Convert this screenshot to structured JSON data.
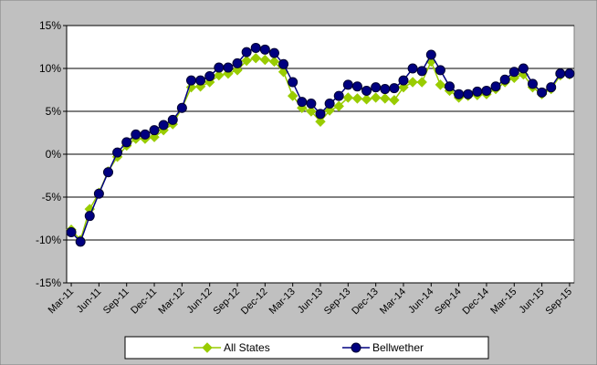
{
  "chart_data": {
    "type": "line",
    "categories": [
      "Mar-11",
      null,
      null,
      "Jun-11",
      null,
      null,
      "Sep-11",
      null,
      null,
      "Dec-11",
      null,
      null,
      "Mar-12",
      null,
      null,
      "Jun-12",
      null,
      null,
      "Sep-12",
      null,
      null,
      "Dec-12",
      null,
      null,
      "Mar-13",
      null,
      null,
      "Jun-13",
      null,
      null,
      "Sep-13",
      null,
      null,
      "Dec-13",
      null,
      null,
      "Mar-14",
      null,
      null,
      "Jun-14",
      null,
      null,
      "Sep-14",
      null,
      null,
      "Dec-14",
      null,
      null,
      "Mar-15",
      null,
      null,
      "Jun-15",
      null,
      null,
      "Sep-15"
    ],
    "series": [
      {
        "name": "All States",
        "color": "#99cc00",
        "marker": "diamond",
        "values": [
          -8.8,
          -10.0,
          -6.4,
          -4.5,
          -2.0,
          -0.3,
          1.0,
          1.8,
          1.8,
          2.0,
          2.8,
          3.5,
          5.4,
          7.8,
          7.9,
          8.4,
          9.2,
          9.4,
          9.8,
          10.9,
          11.2,
          11.0,
          10.8,
          9.6,
          6.8,
          5.4,
          5.0,
          3.8,
          5.1,
          5.6,
          6.6,
          6.5,
          6.4,
          6.6,
          6.5,
          6.3,
          7.8,
          8.4,
          8.4,
          10.8,
          8.1,
          7.4,
          6.6,
          6.8,
          6.9,
          7.0,
          7.6,
          8.4,
          8.9,
          9.3,
          7.8,
          7.0,
          7.6,
          9.2,
          9.3
        ]
      },
      {
        "name": "Bellwether",
        "color": "#000080",
        "marker": "circle",
        "values": [
          -9.1,
          -10.2,
          -7.2,
          -4.6,
          -2.1,
          0.2,
          1.4,
          2.3,
          2.3,
          2.8,
          3.4,
          4.0,
          5.4,
          8.6,
          8.6,
          9.1,
          10.1,
          10.1,
          10.6,
          11.9,
          12.4,
          12.2,
          11.8,
          10.5,
          8.4,
          6.1,
          5.9,
          4.7,
          5.9,
          6.8,
          8.1,
          7.9,
          7.4,
          7.8,
          7.6,
          7.7,
          8.6,
          10.0,
          9.7,
          11.6,
          9.8,
          7.9,
          7.0,
          7.0,
          7.3,
          7.4,
          7.9,
          8.7,
          9.6,
          10.0,
          8.2,
          7.2,
          7.8,
          9.4,
          9.4
        ]
      }
    ],
    "ylim": [
      -15,
      15
    ],
    "yticks": [
      {
        "value": -15,
        "label": "-15%"
      },
      {
        "value": -10,
        "label": "-10%"
      },
      {
        "value": -5,
        "label": "-5%"
      },
      {
        "value": 0,
        "label": "0%"
      },
      {
        "value": 5,
        "label": "5%"
      },
      {
        "value": 10,
        "label": "10%"
      },
      {
        "value": 15,
        "label": "15%"
      }
    ],
    "grid": true,
    "legend": "bottom"
  }
}
